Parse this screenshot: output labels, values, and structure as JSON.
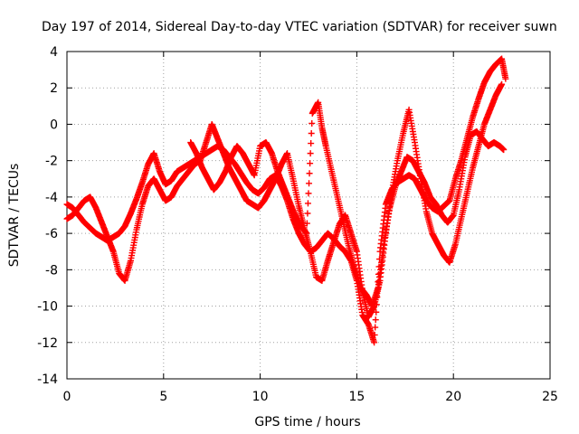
{
  "chart_data": {
    "type": "scatter",
    "title": "Day 197 of 2014, Sidereal Day-to-day VTEC variation (SDTVAR) for receiver suwn",
    "xlabel": "GPS time / hours",
    "ylabel": "SDTVAR / TECUs",
    "xlim": [
      0,
      25
    ],
    "ylim": [
      -14,
      4
    ],
    "x_ticks": [
      "0",
      "5",
      "10",
      "15",
      "20",
      "25"
    ],
    "y_ticks": [
      "4",
      "2",
      "0",
      "-2",
      "-4",
      "-6",
      "-8",
      "-10",
      "-12",
      "-14"
    ],
    "grid": true,
    "marker": "plus",
    "color": "#ff0000",
    "series": [
      {
        "values_x": [
          0.0,
          0.3,
          0.6,
          0.9,
          1.2,
          1.5,
          1.8,
          2.1,
          2.4,
          2.7,
          3.0,
          3.3,
          3.6,
          3.9,
          4.2,
          4.5,
          4.8,
          5.1,
          5.4,
          5.7,
          6.0,
          6.3,
          6.6,
          6.9,
          7.2,
          7.5,
          7.8,
          8.1,
          8.4,
          8.7,
          9.0,
          9.3,
          9.6,
          9.9,
          10.2,
          10.5,
          10.8,
          11.1,
          11.4,
          11.7,
          12.0,
          12.3,
          12.6,
          12.9,
          13.2,
          13.5,
          13.8,
          14.1,
          14.4,
          14.7,
          15.0,
          15.3,
          15.6,
          15.9,
          16.2,
          16.5,
          16.8,
          17.1,
          17.4,
          17.7,
          18.0,
          18.3,
          18.6,
          18.9,
          19.2,
          19.5,
          19.8,
          20.1,
          20.4,
          20.7,
          21.0,
          21.3,
          21.6,
          21.9,
          22.2,
          22.5,
          22.7
        ],
        "values_y": [
          -4.4,
          -4.6,
          -5.0,
          -5.4,
          -5.7,
          -6.0,
          -6.2,
          -6.4,
          -6.2,
          -6.0,
          -5.6,
          -4.9,
          -4.1,
          -3.2,
          -2.2,
          -1.6,
          -2.6,
          -3.3,
          -3.1,
          -2.6,
          -2.4,
          -2.2,
          -2.0,
          -1.8,
          -1.6,
          -1.4,
          -1.2,
          -1.4,
          -1.8,
          -2.2,
          -2.7,
          -3.2,
          -3.6,
          -3.8,
          -3.5,
          -3.0,
          -2.8,
          -3.4,
          -4.2,
          -5.2,
          -6.0,
          -6.6,
          -7.0,
          -6.8,
          -6.4,
          -6.0,
          -6.3,
          -6.7,
          -7.0,
          -7.5,
          -8.6,
          -10.5,
          -11.0,
          -12.0,
          -7.0,
          -4.4,
          -3.6,
          -3.2,
          -3.0,
          -2.8,
          -3.0,
          -3.6,
          -4.2,
          -4.6,
          -4.8,
          -4.5,
          -4.2,
          -3.0,
          -2.0,
          -0.8,
          0.4,
          1.4,
          2.3,
          2.9,
          3.3,
          3.6,
          2.5
        ]
      },
      {
        "values_x": [
          0.0,
          0.3,
          0.6,
          0.9,
          1.2,
          1.5,
          1.8,
          2.1,
          2.4,
          2.7,
          3.0,
          3.3,
          3.6,
          3.9,
          4.2,
          4.5,
          4.8,
          5.1,
          5.4,
          5.7,
          6.0,
          6.3,
          6.6,
          6.9,
          7.2,
          7.5,
          7.8,
          8.1,
          8.4,
          8.7,
          9.0,
          9.3,
          9.6,
          9.9,
          10.2,
          10.5,
          10.8,
          11.1,
          11.4,
          11.7,
          12.0,
          12.3,
          12.6,
          12.9,
          13.2,
          13.5,
          13.8,
          14.1,
          14.4,
          14.7,
          15.0,
          15.3,
          15.6,
          15.9,
          16.2,
          16.5,
          16.8,
          17.1,
          17.4,
          17.7,
          18.0,
          18.3,
          18.6,
          18.9,
          19.2,
          19.5,
          19.8,
          20.1,
          20.4,
          20.7,
          21.0,
          21.3,
          21.6,
          21.9,
          22.2,
          22.5
        ],
        "values_y": [
          -5.2,
          -5.0,
          -4.6,
          -4.2,
          -4.0,
          -4.6,
          -5.4,
          -6.2,
          -7.0,
          -8.2,
          -8.6,
          -7.5,
          -5.8,
          -4.4,
          -3.4,
          -3.0,
          -3.6,
          -4.2,
          -4.0,
          -3.4,
          -3.0,
          -2.6,
          -2.2,
          -2.0,
          -1.0,
          0.0,
          -0.8,
          -1.6,
          -2.4,
          -3.0,
          -3.6,
          -4.2,
          -4.4,
          -4.6,
          -4.2,
          -3.6,
          -3.0,
          -2.2,
          -1.6,
          -3.0,
          -4.5,
          -5.8,
          -7.0,
          -8.4,
          -8.6,
          -7.5,
          -6.5,
          -5.5,
          -5.0,
          -6.0,
          -7.0,
          -9.2,
          -10.6,
          -10.0,
          -8.6,
          -6.0,
          -3.8,
          -2.0,
          -0.5,
          0.8,
          -1.0,
          -3.0,
          -4.8,
          -6.0,
          -6.6,
          -7.2,
          -7.6,
          -6.6,
          -5.2,
          -3.8,
          -2.4,
          -1.2,
          0.0,
          0.8,
          1.6,
          2.2
        ]
      },
      {
        "values_x": [
          6.4,
          6.7,
          7.0,
          7.3,
          7.6,
          7.9,
          8.2,
          8.5,
          8.8,
          9.1,
          9.4,
          9.7,
          10.0,
          10.3,
          10.6,
          10.9,
          11.2,
          11.5,
          11.8,
          12.1,
          12.4,
          12.7,
          13.0,
          13.2,
          13.4,
          13.7,
          14.0,
          14.3,
          14.6,
          14.9,
          15.2,
          15.5,
          15.8,
          16.1,
          16.4,
          16.7,
          17.0,
          17.3,
          17.6,
          17.9,
          18.2,
          18.5,
          18.8,
          19.1,
          19.4,
          19.7,
          20.0,
          20.3,
          20.6,
          20.9,
          21.2,
          21.5,
          21.8,
          22.1,
          22.4,
          22.6
        ],
        "values_y": [
          -1.0,
          -1.6,
          -2.4,
          -3.0,
          -3.6,
          -3.2,
          -2.6,
          -1.8,
          -1.2,
          -1.6,
          -2.2,
          -2.8,
          -1.2,
          -1.0,
          -1.6,
          -2.6,
          -3.4,
          -4.2,
          -5.0,
          -5.6,
          -6.0,
          0.6,
          1.2,
          -0.2,
          -1.2,
          -2.6,
          -4.0,
          -5.4,
          -6.8,
          -8.0,
          -9.0,
          -9.4,
          -10.0,
          -9.0,
          -6.6,
          -4.6,
          -3.4,
          -2.6,
          -1.8,
          -2.0,
          -2.6,
          -3.2,
          -4.0,
          -4.4,
          -5.0,
          -5.4,
          -5.0,
          -3.6,
          -1.8,
          -0.6,
          -0.4,
          -0.8,
          -1.2,
          -1.0,
          -1.2,
          -1.4
        ]
      }
    ]
  }
}
